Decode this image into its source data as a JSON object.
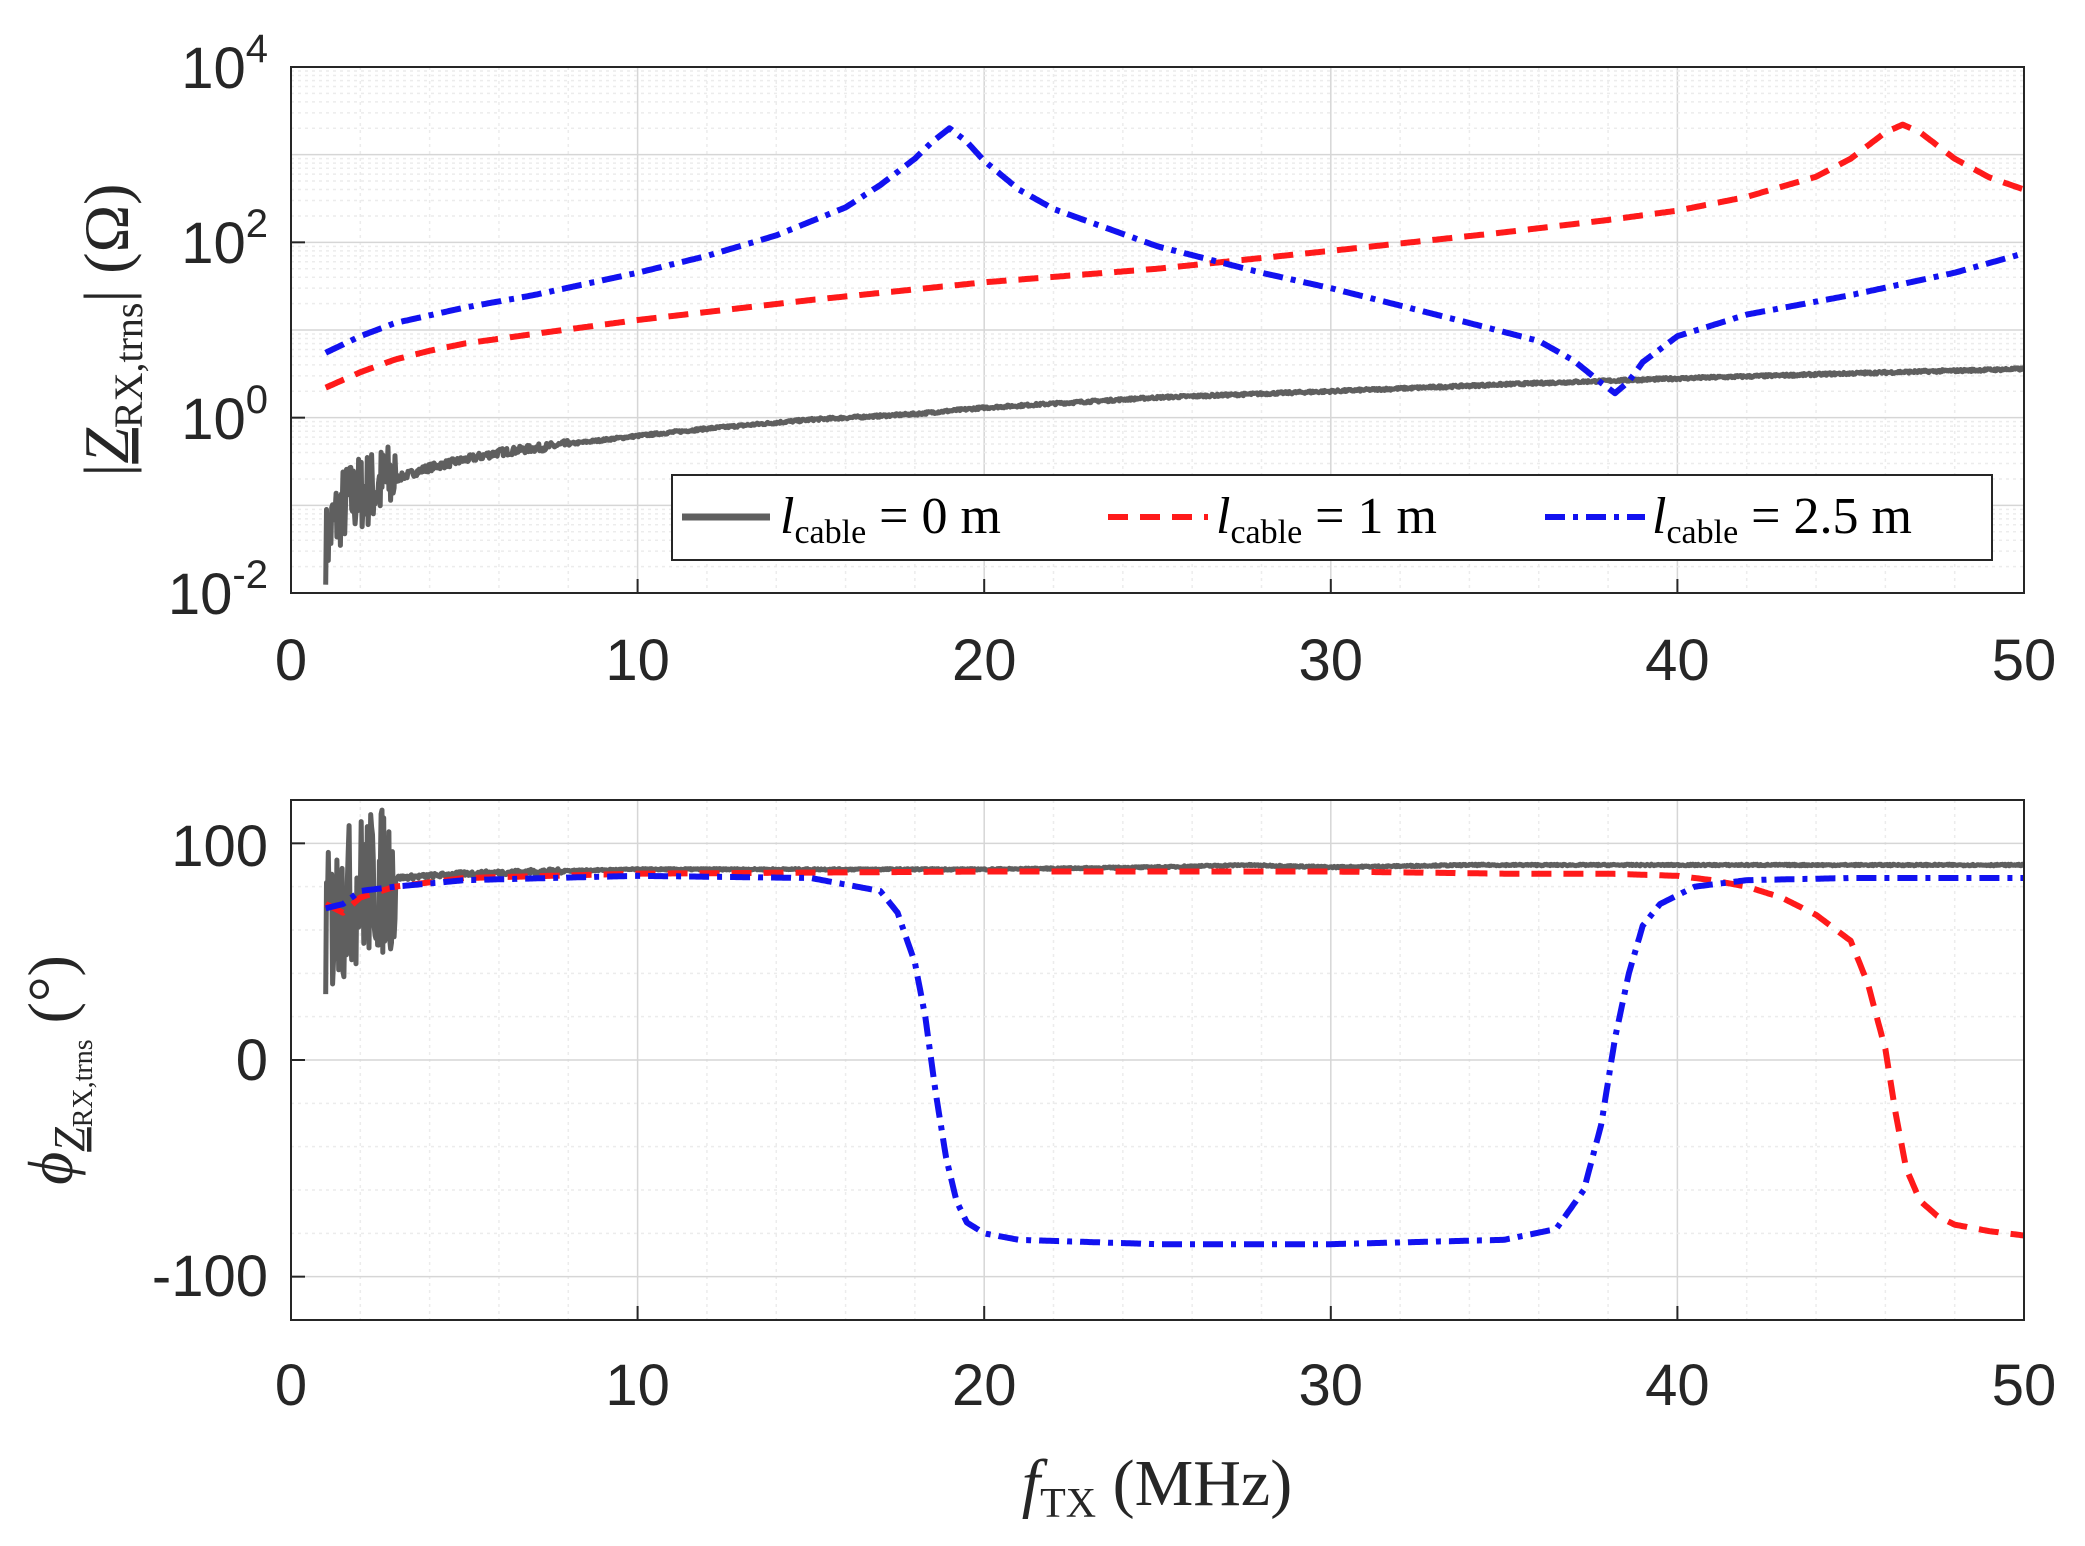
{
  "chart_data": [
    {
      "id": "magnitude",
      "type": "line",
      "yscale": "log",
      "xlim": [
        0,
        50
      ],
      "ylim_exp": [
        -2,
        4
      ],
      "x_ticks": [
        "0",
        "10",
        "20",
        "30",
        "40",
        "50"
      ],
      "y_ticks": [
        {
          "base": "10",
          "exp": "-2"
        },
        {
          "base": "10",
          "exp": "0"
        },
        {
          "base": "10",
          "exp": "2"
        },
        {
          "base": "10",
          "exp": "4"
        }
      ],
      "ylabel": {
        "bar_l": "|",
        "var": "Z",
        "sub": "RX,trns",
        "bar_r": "|",
        "unit": "(Ω)"
      },
      "grid": true,
      "legend": {
        "position": "bottom-right",
        "entries": [
          {
            "var": "l",
            "sub": "cable",
            "eq": " = 0 m"
          },
          {
            "var": "l",
            "sub": "cable",
            "eq": " = 1 m"
          },
          {
            "var": "l",
            "sub": "cable",
            "eq": " = 2.5 m"
          }
        ]
      },
      "series": [
        {
          "name": "l_cable = 0 m",
          "color": "#5f5f5f",
          "style": "solid",
          "noisy": true,
          "x": [
            1,
            1.2,
            1.5,
            2,
            3,
            4,
            5,
            6,
            8,
            10,
            12,
            15,
            18,
            20,
            25,
            30,
            35,
            40,
            45,
            50
          ],
          "y": [
            0.035,
            0.06,
            0.1,
            0.14,
            0.2,
            0.27,
            0.33,
            0.4,
            0.5,
            0.62,
            0.75,
            0.95,
            1.1,
            1.3,
            1.7,
            2.0,
            2.4,
            2.8,
            3.2,
            3.6
          ]
        },
        {
          "name": "l_cable = 1 m",
          "color": "#ff1a1a",
          "style": "dashed",
          "x": [
            1,
            2,
            3,
            4,
            5,
            7,
            10,
            15,
            20,
            25,
            30,
            35,
            38,
            40,
            42,
            44,
            45,
            46,
            46.5,
            47,
            48,
            49,
            50
          ],
          "y": [
            2.2,
            3.3,
            4.6,
            5.8,
            7.0,
            9.0,
            13,
            22,
            35,
            50,
            80,
            130,
            180,
            230,
            330,
            560,
            900,
            1800,
            2200,
            1800,
            900,
            550,
            400
          ]
        },
        {
          "name": "l_cable = 2.5 m",
          "color": "#1212f0",
          "style": "dashdot",
          "x": [
            1,
            2,
            3,
            5,
            7,
            10,
            12,
            14,
            16,
            17,
            18,
            18.5,
            19,
            19.5,
            20,
            21,
            22,
            25,
            28,
            30,
            32,
            34,
            36,
            37,
            37.8,
            38.2,
            38.6,
            39,
            40,
            42,
            45,
            48,
            50
          ],
          "y": [
            5.5,
            8.5,
            12,
            18,
            25,
            45,
            70,
            120,
            250,
            450,
            900,
            1400,
            2000,
            1400,
            850,
            400,
            240,
            90,
            45,
            30,
            19,
            12,
            7.5,
            4.5,
            2.5,
            1.9,
            2.6,
            4.3,
            8.5,
            15,
            25,
            45,
            75
          ]
        }
      ]
    },
    {
      "id": "phase",
      "type": "line",
      "yscale": "linear",
      "xlim": [
        0,
        50
      ],
      "ylim": [
        -120,
        120
      ],
      "x_ticks": [
        "0",
        "10",
        "20",
        "30",
        "40",
        "50"
      ],
      "y_ticks": [
        "100",
        "0",
        "-100"
      ],
      "y_tick_values": [
        100,
        0,
        -100
      ],
      "xlabel": {
        "var": "f",
        "sub": "TX",
        "unit": "(MHz)"
      },
      "ylabel": {
        "var": "ϕ",
        "sub": "Z",
        "subsub": "RX,trns",
        "unit": "(°)"
      },
      "grid": true,
      "series": [
        {
          "name": "l_cable = 0 m",
          "color": "#5f5f5f",
          "style": "solid",
          "noisy": true,
          "x": [
            1,
            1.5,
            2,
            3,
            4,
            5,
            7,
            10,
            15,
            20,
            25,
            27.5,
            30,
            34,
            40,
            45,
            50
          ],
          "y": [
            60,
            72,
            80,
            84,
            85,
            86,
            87,
            88,
            88,
            88,
            89,
            90,
            89,
            90,
            90,
            90,
            90
          ]
        },
        {
          "name": "l_cable = 1 m",
          "color": "#ff1a1a",
          "style": "dashed",
          "x": [
            1,
            1.5,
            2,
            3,
            5,
            10,
            20,
            30,
            35,
            38,
            40,
            41,
            42,
            43,
            44,
            45,
            45.5,
            46,
            46.3,
            46.6,
            47,
            47.5,
            48,
            49,
            50
          ],
          "y": [
            72,
            68,
            75,
            80,
            84,
            86,
            87,
            87,
            86,
            86,
            85,
            83,
            80,
            75,
            67,
            55,
            35,
            5,
            -25,
            -50,
            -65,
            -72,
            -76,
            -79,
            -81
          ]
        },
        {
          "name": "l_cable = 2.5 m",
          "color": "#1212f0",
          "style": "dashdot",
          "x": [
            1,
            1.5,
            2,
            3,
            5,
            10,
            15,
            17,
            17.5,
            18,
            18.3,
            18.6,
            18.9,
            19.2,
            19.5,
            20,
            21,
            25,
            30,
            35,
            36.5,
            37.3,
            37.8,
            38.2,
            38.6,
            39,
            39.5,
            40.5,
            42,
            45,
            50
          ],
          "y": [
            70,
            72,
            78,
            80,
            83,
            85,
            84,
            78,
            68,
            45,
            20,
            -15,
            -45,
            -65,
            -75,
            -80,
            -83,
            -85,
            -85,
            -83,
            -78,
            -60,
            -30,
            10,
            40,
            62,
            72,
            80,
            83,
            84,
            84
          ]
        }
      ]
    }
  ]
}
